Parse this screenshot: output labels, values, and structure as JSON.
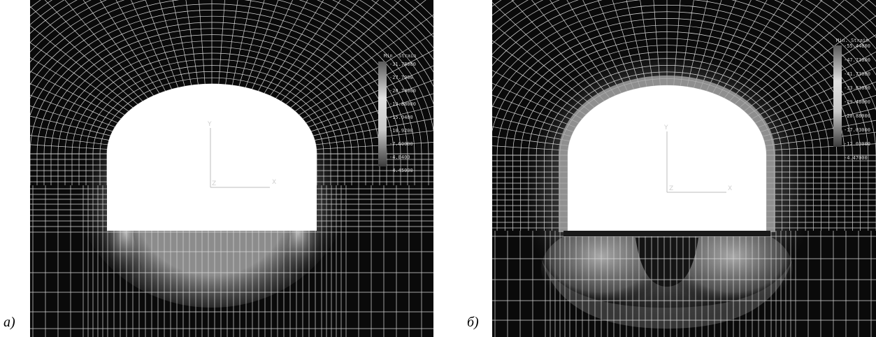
{
  "panels": [
    {
      "caption": "а)",
      "axes": {
        "y_label": "Y",
        "x_label": "X",
        "origin_label": "Z"
      },
      "legend": {
        "title": "Min. Strain",
        "values": [
          "-31.78000",
          "-27.7000",
          "-20.74000",
          "-19.88000",
          "-15.0400",
          "-10.9200",
          "-7.60000",
          "-4.8400",
          "-4.45000"
        ]
      }
    },
    {
      "caption": "б)",
      "axes": {
        "y_label": "Y",
        "x_label": "X",
        "origin_label": "Z"
      },
      "legend": {
        "title": "Min. Strain",
        "values": [
          "-55.44000",
          "-47.73000",
          "-41.73000",
          "-33.83000",
          "-29.48000",
          "-20.88000",
          "-17.03000",
          "-12.03000",
          "-4.47000"
        ]
      }
    }
  ]
}
